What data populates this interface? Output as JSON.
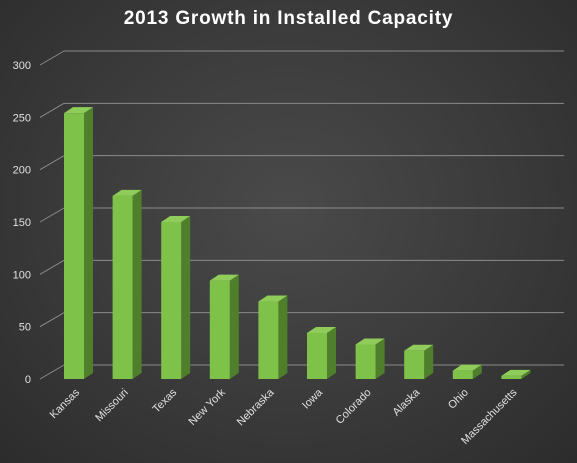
{
  "chart_data": {
    "type": "bar",
    "title": "2013 Growth in Installed Capacity",
    "xlabel": "",
    "ylabel": "",
    "categories": [
      "Kansas",
      "Missouri",
      "Texas",
      "New York",
      "Nebraska",
      "Iowa",
      "Colorado",
      "Alaska",
      "Ohio",
      "Massachusetts"
    ],
    "values": [
      254,
      175,
      150,
      94,
      74,
      44,
      33,
      27,
      8,
      3
    ],
    "ylim": [
      0,
      300
    ],
    "yticks": [
      0,
      50,
      100,
      150,
      200,
      250,
      300
    ],
    "grid": true,
    "legend": "none",
    "colors": {
      "bar_front": "#7fc24a",
      "bar_side": "#4f7f2a",
      "bar_top": "#8fcc5a",
      "grid": "#8a8a8a"
    }
  }
}
